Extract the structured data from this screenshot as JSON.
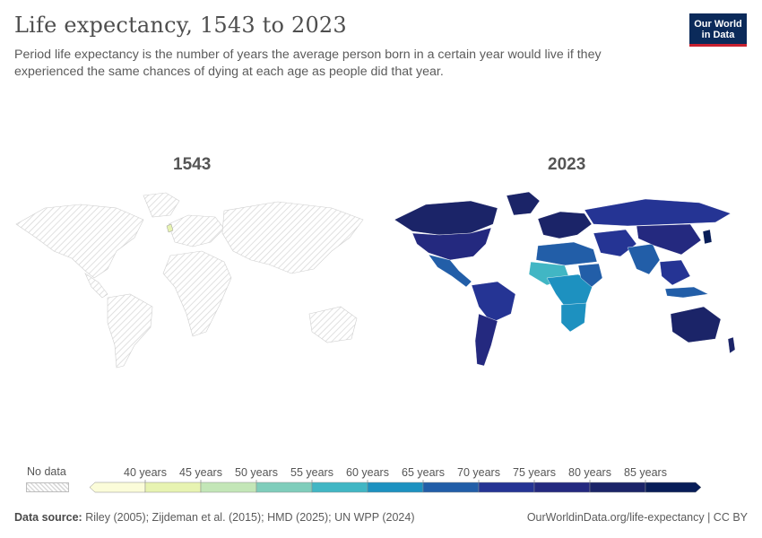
{
  "header": {
    "title": "Life expectancy, 1543 to 2023",
    "subtitle": "Period life expectancy is the number of years the average person born in a certain year would live if they experienced the same chances of dying at each age as people did that year."
  },
  "logo": {
    "line1": "Our World",
    "line2": "in Data"
  },
  "maps": [
    {
      "year": "1543"
    },
    {
      "year": "2023"
    }
  ],
  "legend": {
    "no_data_label": "No data",
    "bins": [
      {
        "label": "",
        "color": "#fbfcd9"
      },
      {
        "label": "40 years",
        "color": "#e7f3b1"
      },
      {
        "label": "45 years",
        "color": "#c3e6b7"
      },
      {
        "label": "50 years",
        "color": "#7fcdbb"
      },
      {
        "label": "55 years",
        "color": "#41b6c4"
      },
      {
        "label": "60 years",
        "color": "#1d91c0"
      },
      {
        "label": "65 years",
        "color": "#225ea8"
      },
      {
        "label": "70 years",
        "color": "#253494"
      },
      {
        "label": "75 years",
        "color": "#24297f"
      },
      {
        "label": "80 years",
        "color": "#1b2468"
      },
      {
        "label": "85 years",
        "color": "#081d58"
      }
    ]
  },
  "footer": {
    "source_label": "Data source:",
    "source_text": "Riley (2005); Zijdeman et al. (2015); HMD (2025); UN WPP (2024)",
    "link": "OurWorldinData.org/life-expectancy | CC BY"
  },
  "colors": {
    "ocean": "#ffffff",
    "nodata_stroke": "#d6d6d6"
  }
}
